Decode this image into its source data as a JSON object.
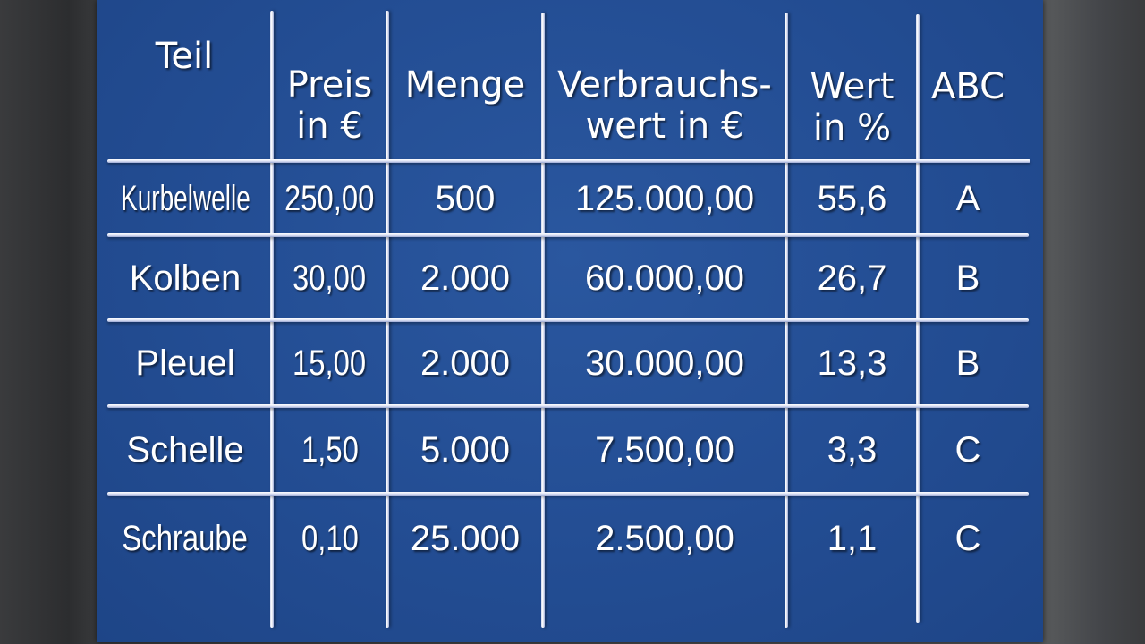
{
  "table": {
    "headers": [
      {
        "line1": "Teil",
        "line2": ""
      },
      {
        "line1": "Preis",
        "line2": "in €"
      },
      {
        "line1": "Menge",
        "line2": ""
      },
      {
        "line1": "Verbrauchs-",
        "line2": "wert in €"
      },
      {
        "line1": "Wert",
        "line2": "in %"
      },
      {
        "line1": "ABC",
        "line2": ""
      }
    ],
    "rows": [
      [
        "Kurbelwelle",
        "250,00",
        "500",
        "125.000,00",
        "55,6",
        "A"
      ],
      [
        "Kolben",
        "30,00",
        "2.000",
        "60.000,00",
        "26,7",
        "B"
      ],
      [
        "Pleuel",
        "15,00",
        "2.000",
        "30.000,00",
        "13,3",
        "B"
      ],
      [
        "Schelle",
        "1,50",
        "5.000",
        "7.500,00",
        "3,3",
        "C"
      ],
      [
        "Schraube",
        "0,10",
        "25.000",
        "2.500,00",
        "1,1",
        "C"
      ]
    ]
  },
  "colors": {
    "board": "#234d93",
    "text": "#ffffff",
    "lines": "#ffffff"
  }
}
